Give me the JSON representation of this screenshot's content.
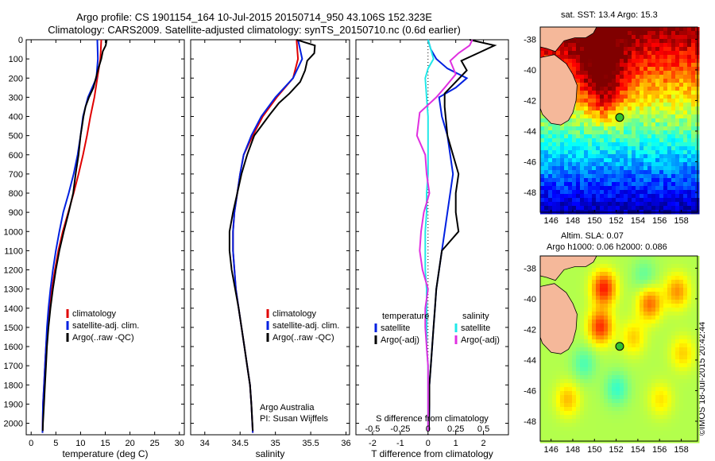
{
  "header": {
    "line1": "Argo profile: CS 1901154_164 10-Jul-2015 20150714_950 43.106S 152.323E",
    "line2": "Climatology: CARS2009. Satellite-adjusted climatology: synTS_20150710.nc (0.6d earlier)"
  },
  "stamp": "©IMOS 18-Jul-2015 20:42:44",
  "colors": {
    "climatology": "#e00000",
    "satellite": "#0020e0",
    "argo": "#000000",
    "sal_satellite": "#20e8e8",
    "sal_argo": "#e030e0",
    "land": "#f5b89a"
  },
  "chart_data": [
    {
      "type": "line",
      "id": "temperature",
      "xlabel": "temperature (deg C)",
      "xlim": [
        -1,
        31
      ],
      "xticks": [
        0,
        5,
        10,
        15,
        20,
        25,
        30
      ],
      "ylim": [
        2060,
        0
      ],
      "yticks": [
        0,
        100,
        200,
        300,
        400,
        500,
        600,
        700,
        800,
        900,
        1000,
        1100,
        1200,
        1300,
        1400,
        1500,
        1600,
        1700,
        1800,
        1900,
        2000
      ],
      "legend": [
        "climatology",
        "satellite-adj. clim.",
        "Argo(..raw -QC)"
      ],
      "series": [
        {
          "name": "climatology",
          "color": "#e00000",
          "x": [
            14.2,
            14.0,
            13.4,
            12.8,
            12.0,
            11.3,
            10.5,
            9.6,
            8.6,
            7.5,
            6.4,
            5.5,
            4.8,
            4.2,
            3.7,
            3.3,
            3.0,
            2.8,
            2.6,
            2.4,
            2.3
          ],
          "y": [
            0,
            100,
            200,
            300,
            400,
            500,
            600,
            700,
            800,
            900,
            1000,
            1100,
            1200,
            1300,
            1400,
            1500,
            1600,
            1700,
            1800,
            1900,
            2050
          ]
        },
        {
          "name": "satellite-adj. clim.",
          "color": "#0020e0",
          "x": [
            13.4,
            13.5,
            13.2,
            11.5,
            10.5,
            10.0,
            9.4,
            8.6,
            7.6,
            6.5,
            5.7,
            5.0,
            4.4,
            3.9,
            3.5,
            3.2,
            3.0,
            2.8,
            2.6,
            2.4,
            2.3
          ],
          "y": [
            0,
            100,
            200,
            300,
            400,
            500,
            600,
            700,
            800,
            900,
            1000,
            1100,
            1200,
            1300,
            1400,
            1500,
            1600,
            1700,
            1800,
            1900,
            2050
          ]
        },
        {
          "name": "Argo(..raw -QC)",
          "color": "#000000",
          "x": [
            15.3,
            15.1,
            14.5,
            14.2,
            13.6,
            13.1,
            12.6,
            11.7,
            11.0,
            10.6,
            10.3,
            10.0,
            9.6,
            9.0,
            8.5,
            7.6,
            6.6,
            5.7,
            5.0,
            4.4,
            3.9,
            3.5,
            3.2,
            3.0,
            2.8,
            2.6,
            2.4,
            2.35
          ],
          "y": [
            0,
            30,
            60,
            100,
            150,
            200,
            250,
            300,
            350,
            400,
            450,
            500,
            600,
            700,
            800,
            900,
            1000,
            1100,
            1200,
            1300,
            1400,
            1500,
            1600,
            1700,
            1800,
            1900,
            2000,
            2040
          ]
        }
      ]
    },
    {
      "type": "line",
      "id": "salinity",
      "xlabel": "salinity",
      "xlim": [
        33.8,
        36.05
      ],
      "xticks": [
        34,
        34.5,
        35,
        35.5,
        36
      ],
      "ylim": [
        2060,
        0
      ],
      "legend": [
        "climatology",
        "satellite-adj. clim.",
        "Argo(..raw -QC)"
      ],
      "annotation": [
        "Argo Australia",
        "PI: Susan Wijffels"
      ],
      "series": [
        {
          "name": "climatology",
          "color": "#e00000",
          "x": [
            35.3,
            35.32,
            35.25,
            35.02,
            34.82,
            34.68,
            34.55,
            34.5,
            34.46,
            34.42,
            34.4,
            34.4,
            34.42,
            34.44,
            34.48,
            34.52,
            34.56,
            34.6,
            34.64,
            34.66,
            34.68
          ],
          "y": [
            0,
            100,
            200,
            300,
            400,
            500,
            600,
            700,
            800,
            900,
            1000,
            1100,
            1200,
            1300,
            1400,
            1500,
            1600,
            1700,
            1800,
            1900,
            2050
          ]
        },
        {
          "name": "satellite-adj. clim.",
          "color": "#0020e0",
          "x": [
            35.32,
            35.38,
            35.25,
            35.0,
            34.8,
            34.66,
            34.55,
            34.5,
            34.46,
            34.42,
            34.4,
            34.4,
            34.42,
            34.44,
            34.48,
            34.52,
            34.56,
            34.6,
            34.64,
            34.66,
            34.68
          ],
          "y": [
            0,
            100,
            200,
            300,
            400,
            500,
            600,
            700,
            800,
            900,
            1000,
            1100,
            1200,
            1300,
            1400,
            1500,
            1600,
            1700,
            1800,
            1900,
            2050
          ]
        },
        {
          "name": "Argo(..raw -QC)",
          "color": "#000000",
          "x": [
            35.3,
            35.56,
            35.55,
            35.45,
            35.42,
            35.35,
            35.2,
            35.05,
            34.92,
            34.8,
            34.7,
            34.6,
            34.52,
            34.46,
            34.4,
            34.35,
            34.35,
            34.38,
            34.43,
            34.48,
            34.52,
            34.56,
            34.6,
            34.64,
            34.66,
            34.68
          ],
          "y": [
            0,
            30,
            70,
            110,
            160,
            220,
            280,
            330,
            390,
            450,
            500,
            600,
            700,
            800,
            900,
            1000,
            1100,
            1200,
            1300,
            1400,
            1500,
            1600,
            1700,
            1800,
            1900,
            2040
          ]
        }
      ]
    },
    {
      "type": "line",
      "id": "difference",
      "xlabel": "T difference from climatology",
      "xlabel_top": "S difference from climatology",
      "xlim": [
        -2.6,
        2.9
      ],
      "xticks": [
        -2,
        -1,
        0,
        1,
        2
      ],
      "xticks_s": [
        "-0.5",
        "-0.25",
        "0",
        "0.25",
        "0.5"
      ],
      "xticks_s_pos": [
        -2,
        -1,
        0,
        1,
        2
      ],
      "ylim": [
        2060,
        0
      ],
      "legend_groups": [
        {
          "title": "temperature",
          "items": [
            "satellite",
            "Argo(-adj)"
          ]
        },
        {
          "title": "salinity",
          "items": [
            "satellite",
            "Argo(-adj)"
          ]
        }
      ],
      "series": [
        {
          "name": "satellite",
          "group": "temperature",
          "color": "#0020e0",
          "x": [
            0.0,
            0.1,
            0.3,
            0.7,
            1.4,
            1.0,
            0.4,
            0.5,
            0.7,
            0.8,
            0.9,
            0.8,
            0.7,
            0.6,
            0.5,
            0.4,
            0.3,
            0.25,
            0.2,
            0.15,
            0.1,
            0.05,
            0.05,
            0.03
          ],
          "y": [
            0,
            50,
            100,
            150,
            200,
            250,
            300,
            400,
            500,
            600,
            700,
            800,
            900,
            1000,
            1100,
            1200,
            1300,
            1400,
            1500,
            1600,
            1700,
            1800,
            1900,
            2040
          ]
        },
        {
          "name": "Argo(-adj)",
          "group": "temperature",
          "color": "#000000",
          "x": [
            1.5,
            2.4,
            1.8,
            1.2,
            1.4,
            1.0,
            0.6,
            0.6,
            0.7,
            0.9,
            1.1,
            1.0,
            1.0,
            1.1,
            0.5,
            0.4,
            0.3,
            0.25,
            0.2,
            0.15,
            0.1,
            0.05,
            0.05,
            0.03
          ],
          "y": [
            0,
            30,
            70,
            110,
            160,
            220,
            280,
            350,
            500,
            600,
            700,
            800,
            900,
            1000,
            1100,
            1200,
            1300,
            1400,
            1500,
            1600,
            1700,
            1800,
            1900,
            2040
          ]
        },
        {
          "name": "satellite",
          "group": "salinity",
          "color": "#20e8e8",
          "x": [
            0.0,
            0.1,
            0.2,
            0.0,
            -0.1,
            -0.05,
            0.0,
            0.0,
            0.0,
            0.0,
            -0.05,
            -0.05,
            -0.1,
            -0.1,
            -0.1,
            -0.05,
            -0.05,
            -0.05,
            -0.05,
            0.0,
            0.0,
            0.0,
            0.0
          ],
          "y": [
            0,
            50,
            100,
            150,
            200,
            300,
            400,
            500,
            600,
            700,
            800,
            900,
            1000,
            1100,
            1200,
            1300,
            1400,
            1500,
            1600,
            1700,
            1800,
            1900,
            2040
          ]
        },
        {
          "name": "Argo(-adj)",
          "group": "salinity",
          "color": "#e030e0",
          "x": [
            1.6,
            1.5,
            1.1,
            0.8,
            1.0,
            0.6,
            0.3,
            -0.3,
            -0.4,
            -0.1,
            -0.05,
            0.05,
            -0.15,
            -0.25,
            -0.3,
            -0.2,
            0.0,
            -0.1,
            -0.1,
            -0.05,
            0.0,
            0.0,
            0.0,
            0.0
          ],
          "y": [
            0,
            30,
            70,
            110,
            180,
            250,
            300,
            380,
            500,
            600,
            700,
            800,
            900,
            1000,
            1100,
            1200,
            1300,
            1400,
            1500,
            1600,
            1700,
            1800,
            1900,
            2040
          ]
        }
      ]
    },
    {
      "type": "heatmap",
      "id": "sst-map",
      "title": "sat. SST: 13.4 Argo: 15.3",
      "xticks": [
        146,
        148,
        150,
        152,
        154,
        156,
        158
      ],
      "yticks": [
        -38,
        -40,
        -42,
        -44,
        -46,
        -48
      ],
      "xlim": [
        145,
        159.5
      ],
      "ylim": [
        -49.3,
        -37.2
      ],
      "float_position": {
        "lon": 152.323,
        "lat": -43.106
      }
    },
    {
      "type": "heatmap",
      "id": "sla-map",
      "title_lines": [
        "Altim. SLA: 0.07",
        "Argo h1000: 0.06 h2000: 0.086"
      ],
      "xticks": [
        146,
        148,
        150,
        152,
        154,
        156,
        158
      ],
      "yticks": [
        -38,
        -40,
        -42,
        -44,
        -46,
        -48
      ],
      "xlim": [
        145,
        159.5
      ],
      "ylim": [
        -49.3,
        -37.2
      ],
      "float_position": {
        "lon": 152.323,
        "lat": -43.106
      }
    }
  ]
}
